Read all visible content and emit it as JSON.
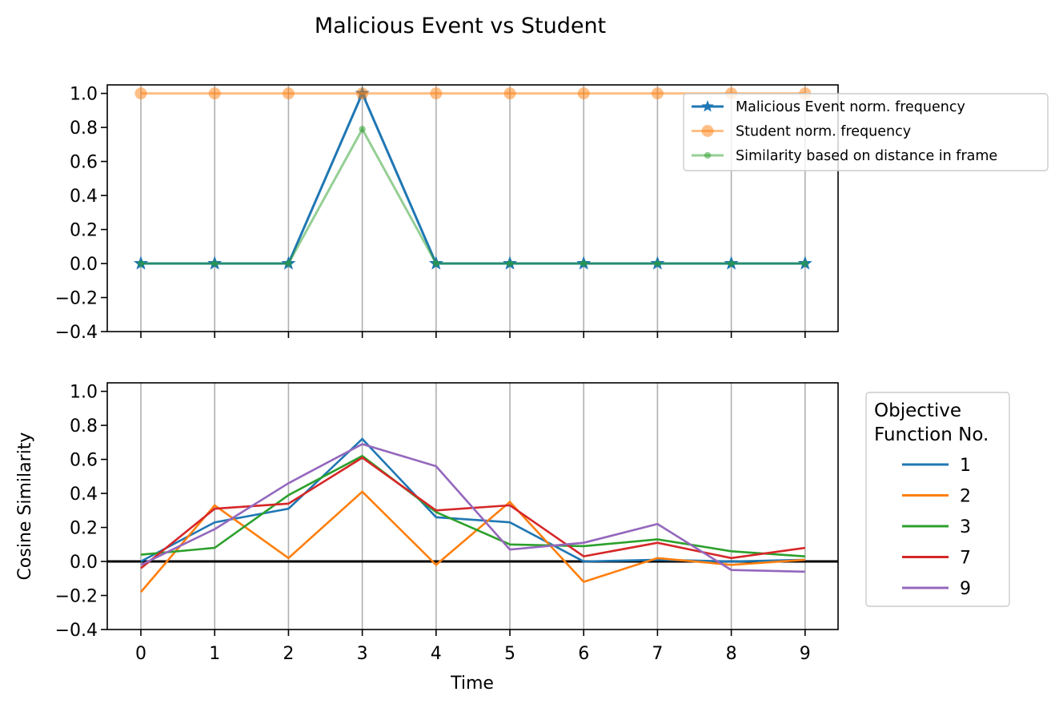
{
  "chart_data": [
    {
      "type": "line",
      "title": "Malicious Event vs Student",
      "xlabel": "",
      "ylabel": "",
      "x": [
        0,
        1,
        2,
        3,
        4,
        5,
        6,
        7,
        8,
        9
      ],
      "ylim": [
        -0.4,
        1.05
      ],
      "yticks": [
        "−0.4",
        "−0.2",
        "0.0",
        "0.2",
        "0.4",
        "0.6",
        "0.8",
        "1.0"
      ],
      "grid": "vertical",
      "legend_placement": "top-right",
      "series": [
        {
          "name": "Malicious Event norm. frequency",
          "color": "#1f77b4",
          "marker": "star",
          "values": [
            0,
            0,
            0,
            1.0,
            0,
            0,
            0,
            0,
            0,
            0
          ]
        },
        {
          "name": "Student norm. frequency",
          "color": "#ff7f0e",
          "marker": "circle",
          "values": [
            1,
            1,
            1,
            1,
            1,
            1,
            1,
            1,
            1,
            1
          ]
        },
        {
          "name": "Similarity based on distance in frame",
          "color": "#2ca02c",
          "marker": "dot",
          "values": [
            0,
            0,
            0,
            0.79,
            0,
            0,
            0,
            0,
            0,
            0
          ]
        }
      ]
    },
    {
      "type": "line",
      "title": "",
      "xlabel": "Time",
      "ylabel": "Cosine Similarity",
      "x": [
        0,
        1,
        2,
        3,
        4,
        5,
        6,
        7,
        8,
        9
      ],
      "xticks": [
        "0",
        "1",
        "2",
        "3",
        "4",
        "5",
        "6",
        "7",
        "8",
        "9"
      ],
      "ylim": [
        -0.4,
        1.05
      ],
      "yticks": [
        "−0.4",
        "−0.2",
        "0.0",
        "0.2",
        "0.4",
        "0.6",
        "0.8",
        "1.0"
      ],
      "grid": "vertical",
      "legend_placement": "outside-right",
      "legend_title": [
        "Objective",
        "Function No."
      ],
      "reference_line_y": 0,
      "series": [
        {
          "name": "1",
          "color": "#1f77b4",
          "values": [
            0.0,
            0.23,
            0.31,
            0.72,
            0.26,
            0.23,
            0.0,
            0.01,
            0.0,
            0.01
          ]
        },
        {
          "name": "2",
          "color": "#ff7f0e",
          "values": [
            -0.18,
            0.33,
            0.02,
            0.41,
            -0.02,
            0.35,
            -0.12,
            0.02,
            -0.02,
            0.01
          ]
        },
        {
          "name": "3",
          "color": "#2ca02c",
          "values": [
            0.04,
            0.08,
            0.39,
            0.62,
            0.29,
            0.1,
            0.09,
            0.13,
            0.06,
            0.03
          ]
        },
        {
          "name": "7",
          "color": "#d62728",
          "values": [
            -0.04,
            0.31,
            0.34,
            0.61,
            0.3,
            0.33,
            0.03,
            0.11,
            0.02,
            0.08
          ]
        },
        {
          "name": "9",
          "color": "#9467bd",
          "values": [
            -0.02,
            0.19,
            0.46,
            0.69,
            0.56,
            0.07,
            0.11,
            0.22,
            -0.05,
            -0.06
          ]
        }
      ]
    }
  ]
}
